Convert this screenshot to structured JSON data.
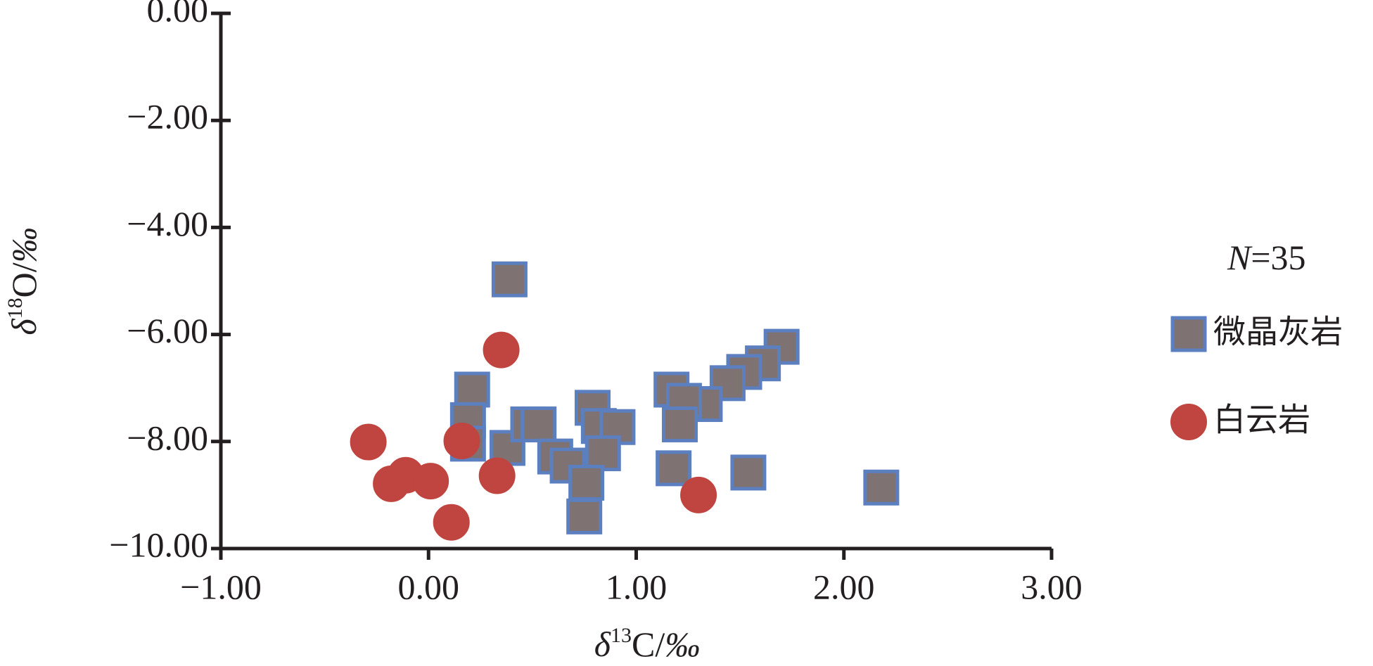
{
  "chart_data": {
    "type": "scatter",
    "x_label": "δ13C/‰",
    "y_label": "δ18O/‰",
    "annotation": "N=35",
    "xlim": [
      -1,
      3
    ],
    "ylim": [
      -10,
      0
    ],
    "xticks": [
      {
        "value": -1,
        "label": "−1.00"
      },
      {
        "value": 0,
        "label": "0.00"
      },
      {
        "value": 1,
        "label": "1.00"
      },
      {
        "value": 2,
        "label": "2.00"
      },
      {
        "value": 3,
        "label": "3.00"
      }
    ],
    "yticks": [
      {
        "value": 0,
        "label": "0.00"
      },
      {
        "value": -2,
        "label": "−2.00"
      },
      {
        "value": -4,
        "label": "−4.00"
      },
      {
        "value": -6,
        "label": "−6.00"
      },
      {
        "value": -8,
        "label": "−8.00"
      },
      {
        "value": -10,
        "label": "−10.00"
      }
    ],
    "series": [
      {
        "name": "微晶灰岩",
        "marker": "square",
        "color": "#7f7272",
        "edgecolor": "#5b7fbf",
        "x": [
          0.39,
          1.7,
          1.61,
          1.52,
          1.44,
          1.33,
          1.17,
          1.23,
          1.21,
          0.21,
          0.19,
          0.19,
          0.38,
          0.48,
          0.53,
          0.61,
          0.67,
          0.79,
          0.82,
          0.91,
          0.84,
          0.76,
          0.75,
          1.18,
          1.54,
          2.18
        ],
        "values": [
          -4.97,
          -6.23,
          -6.54,
          -6.7,
          -6.91,
          -7.3,
          -7.03,
          -7.24,
          -7.68,
          -7.03,
          -7.6,
          -8.04,
          -8.12,
          -7.68,
          -7.68,
          -8.28,
          -8.45,
          -7.37,
          -7.71,
          -7.73,
          -8.22,
          -8.77,
          -9.4,
          -8.5,
          -8.58,
          -8.86
        ]
      },
      {
        "name": "白云岩",
        "marker": "circle",
        "color": "#c0443f",
        "edgecolor": "#c0443f",
        "x": [
          -0.29,
          -0.11,
          -0.18,
          0.01,
          0.11,
          0.16,
          0.33,
          0.35,
          1.3
        ],
        "values": [
          -8.01,
          -8.63,
          -8.79,
          -8.74,
          -9.51,
          -7.99,
          -8.64,
          -6.29,
          -9.0
        ]
      }
    ]
  }
}
